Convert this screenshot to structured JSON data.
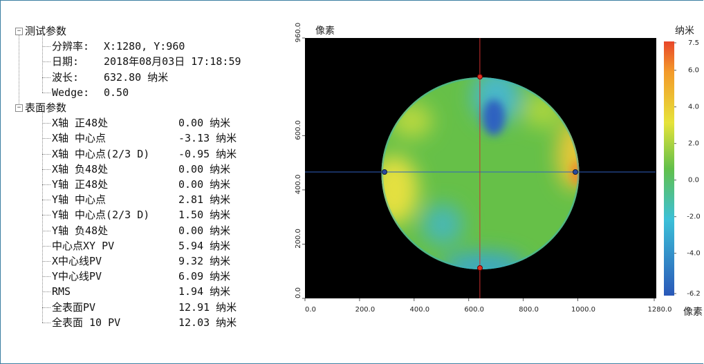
{
  "tree": {
    "groups": [
      {
        "label": "测试参数",
        "items": [
          {
            "label": "分辨率:",
            "value": "X:1280, Y:960"
          },
          {
            "label": "日期:",
            "value": "2018年08月03日 17:18:59"
          },
          {
            "label": "波长:",
            "value": "632.80 纳米"
          },
          {
            "label": "Wedge:",
            "value": "0.50"
          }
        ]
      },
      {
        "label": "表面参数",
        "items": [
          {
            "label": "X轴 正48处",
            "value": "0.00 纳米"
          },
          {
            "label": "X轴 中心点",
            "value": "-3.13 纳米"
          },
          {
            "label": "X轴 中心点(2/3 D)",
            "value": "-0.95 纳米"
          },
          {
            "label": "X轴 负48处",
            "value": "0.00 纳米"
          },
          {
            "label": "Y轴 正48处",
            "value": "0.00 纳米"
          },
          {
            "label": "Y轴 中心点",
            "value": "2.81 纳米"
          },
          {
            "label": "Y轴 中心点(2/3 D)",
            "value": "1.50 纳米"
          },
          {
            "label": "Y轴 负48处",
            "value": "0.00 纳米"
          },
          {
            "label": "中心点XY PV",
            "value": "5.94 纳米"
          },
          {
            "label": "X中心线PV",
            "value": "9.32 纳米"
          },
          {
            "label": "Y中心线PV",
            "value": "6.09 纳米"
          },
          {
            "label": "RMS",
            "value": "1.94 纳米"
          },
          {
            "label": "全表面PV",
            "value": "12.91 纳米"
          },
          {
            "label": "全表面 10 PV",
            "value": "12.03 纳米"
          }
        ]
      }
    ]
  },
  "plot": {
    "y_label": "像素",
    "x_label": "像素",
    "colorbar_label": "纳米",
    "xlim": [
      0,
      1280
    ],
    "xticks": [
      {
        "value": 0,
        "label": "0.0"
      },
      {
        "value": 200,
        "label": "200.0"
      },
      {
        "value": 400,
        "label": "400.0"
      },
      {
        "value": 600,
        "label": "600.0"
      },
      {
        "value": 800,
        "label": "800.0"
      },
      {
        "value": 1000,
        "label": "1000.0"
      },
      {
        "value": 1280,
        "label": "1280.0"
      }
    ],
    "ylim": [
      0,
      960
    ],
    "yticks": [
      {
        "value": 0,
        "label": "0.0"
      },
      {
        "value": 200,
        "label": "200.0"
      },
      {
        "value": 400,
        "label": "400.0"
      },
      {
        "value": 600,
        "label": "600.0"
      },
      {
        "value": 960,
        "label": "960.0"
      }
    ],
    "colorbar_lim": [
      -6.2,
      7.5
    ],
    "colorbar_ticks": [
      {
        "value": 7.5,
        "label": "7.5"
      },
      {
        "value": 6,
        "label": "6.0"
      },
      {
        "value": 4,
        "label": "4.0"
      },
      {
        "value": 2,
        "label": "2.0"
      },
      {
        "value": 0,
        "label": "0.0"
      },
      {
        "value": -2,
        "label": "-2.0"
      },
      {
        "value": -4,
        "label": "-4.0"
      },
      {
        "value": -6.2,
        "label": "-6.2"
      }
    ],
    "crosshair": {
      "x": 641,
      "y": 466
    }
  }
}
